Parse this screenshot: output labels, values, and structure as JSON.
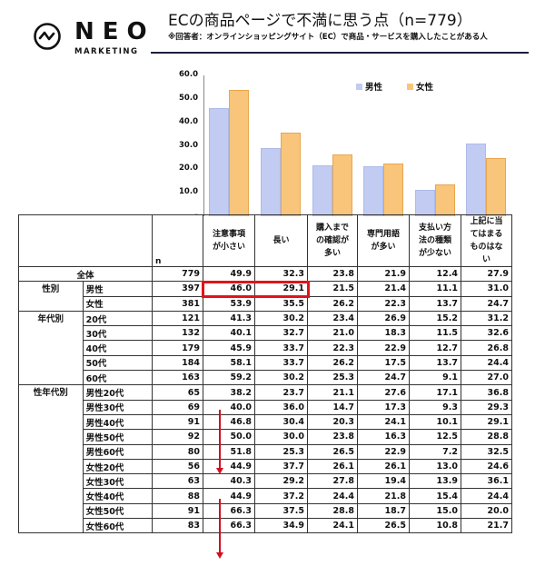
{
  "header": {
    "logo_word": "NEO",
    "logo_sub": "MARKETING",
    "title": "ECの商品ページで不満に思う点（n=779）",
    "subtitle": "※回答者：オンラインショッピングサイト（EC）で商品・サービスを購入したことがある人"
  },
  "legend": {
    "male": "男性",
    "female": "女性"
  },
  "y_ticks": [
    "60.0",
    "50.0",
    "40.0",
    "30.0",
    "20.0",
    "10.0",
    "-"
  ],
  "table": {
    "n_label": "n",
    "columns": [
      "注意事項が小さい",
      "長い",
      "購入までの確認が多い",
      "専門用語が多い",
      "支払い方法の種類が少ない",
      "上記に当てはまるものはない"
    ],
    "column_lines": [
      [
        "注意事項",
        "が小さい"
      ],
      [
        "長い"
      ],
      [
        "購入まで",
        "の確認が",
        "多い"
      ],
      [
        "専門用語",
        "が多い"
      ],
      [
        "支払い方",
        "法の種類",
        "が少ない"
      ],
      [
        "上記に当",
        "てはまる",
        "ものはな",
        "い"
      ]
    ],
    "groups": [
      {
        "name": "全体",
        "rows": [
          {
            "label": "全体",
            "n": "779",
            "values": [
              "49.9",
              "32.3",
              "23.8",
              "21.9",
              "12.4",
              "27.9"
            ]
          }
        ]
      },
      {
        "name": "性別",
        "rows": [
          {
            "label": "男性",
            "n": "397",
            "values": [
              "46.0",
              "29.1",
              "21.5",
              "21.4",
              "11.1",
              "31.0"
            ]
          },
          {
            "label": "女性",
            "n": "381",
            "values": [
              "53.9",
              "35.5",
              "26.2",
              "22.3",
              "13.7",
              "24.7"
            ]
          }
        ]
      },
      {
        "name": "年代別",
        "rows": [
          {
            "label": "20代",
            "n": "121",
            "values": [
              "41.3",
              "30.2",
              "23.4",
              "26.9",
              "15.2",
              "31.2"
            ]
          },
          {
            "label": "30代",
            "n": "132",
            "values": [
              "40.1",
              "32.7",
              "21.0",
              "18.3",
              "11.5",
              "32.6"
            ]
          },
          {
            "label": "40代",
            "n": "179",
            "values": [
              "45.9",
              "33.7",
              "22.3",
              "22.9",
              "12.7",
              "26.8"
            ]
          },
          {
            "label": "50代",
            "n": "184",
            "values": [
              "58.1",
              "33.7",
              "26.2",
              "17.5",
              "13.7",
              "24.4"
            ]
          },
          {
            "label": "60代",
            "n": "163",
            "values": [
              "59.2",
              "30.2",
              "25.3",
              "24.7",
              "9.1",
              "27.0"
            ]
          }
        ]
      },
      {
        "name": "性年代別",
        "rows": [
          {
            "label": "男性20代",
            "n": "65",
            "values": [
              "38.2",
              "23.7",
              "21.1",
              "27.6",
              "17.1",
              "36.8"
            ]
          },
          {
            "label": "男性30代",
            "n": "69",
            "values": [
              "40.0",
              "36.0",
              "14.7",
              "17.3",
              "9.3",
              "29.3"
            ]
          },
          {
            "label": "男性40代",
            "n": "91",
            "values": [
              "46.8",
              "30.4",
              "20.3",
              "24.1",
              "10.1",
              "29.1"
            ]
          },
          {
            "label": "男性50代",
            "n": "92",
            "values": [
              "50.0",
              "30.0",
              "23.8",
              "16.3",
              "12.5",
              "28.8"
            ]
          },
          {
            "label": "男性60代",
            "n": "80",
            "values": [
              "51.8",
              "25.3",
              "26.5",
              "22.9",
              "7.2",
              "32.5"
            ]
          },
          {
            "label": "女性20代",
            "n": "56",
            "values": [
              "44.9",
              "37.7",
              "26.1",
              "26.1",
              "13.0",
              "24.6"
            ]
          },
          {
            "label": "女性30代",
            "n": "63",
            "values": [
              "40.3",
              "29.2",
              "27.8",
              "19.4",
              "13.9",
              "36.1"
            ]
          },
          {
            "label": "女性40代",
            "n": "88",
            "values": [
              "44.9",
              "37.2",
              "24.4",
              "21.8",
              "15.4",
              "24.4"
            ]
          },
          {
            "label": "女性50代",
            "n": "91",
            "values": [
              "66.3",
              "37.5",
              "28.8",
              "18.7",
              "15.0",
              "20.0"
            ]
          },
          {
            "label": "女性60代",
            "n": "83",
            "values": [
              "66.3",
              "34.9",
              "24.1",
              "26.5",
              "10.8",
              "21.7"
            ]
          }
        ]
      }
    ]
  },
  "colors": {
    "male": "#c2cbf2",
    "female": "#f9c57a",
    "highlight": "#e0141a",
    "rule": "#1a1f3a"
  },
  "chart_data": {
    "type": "bar",
    "title": "ECの商品ページで不満に思う点（n=779）",
    "subtitle": "※回答者：オンラインショッピングサイト（EC）で商品・サービスを購入したことがある人",
    "categories": [
      "注意事項が小さい",
      "長い",
      "購入までの確認が多い",
      "専門用語が多い",
      "支払い方法の種類が少ない",
      "上記に当てはまるものはない"
    ],
    "series": [
      {
        "name": "男性",
        "values": [
          46.0,
          29.1,
          21.5,
          21.4,
          11.1,
          31.0
        ]
      },
      {
        "name": "女性",
        "values": [
          53.9,
          35.5,
          26.2,
          22.3,
          13.7,
          24.7
        ]
      }
    ],
    "xlabel": "",
    "ylabel": "",
    "ylim": [
      0,
      60
    ],
    "yticks": [
      0,
      10,
      20,
      30,
      40,
      50,
      60
    ],
    "legend_position": "top-right",
    "grid": false
  }
}
